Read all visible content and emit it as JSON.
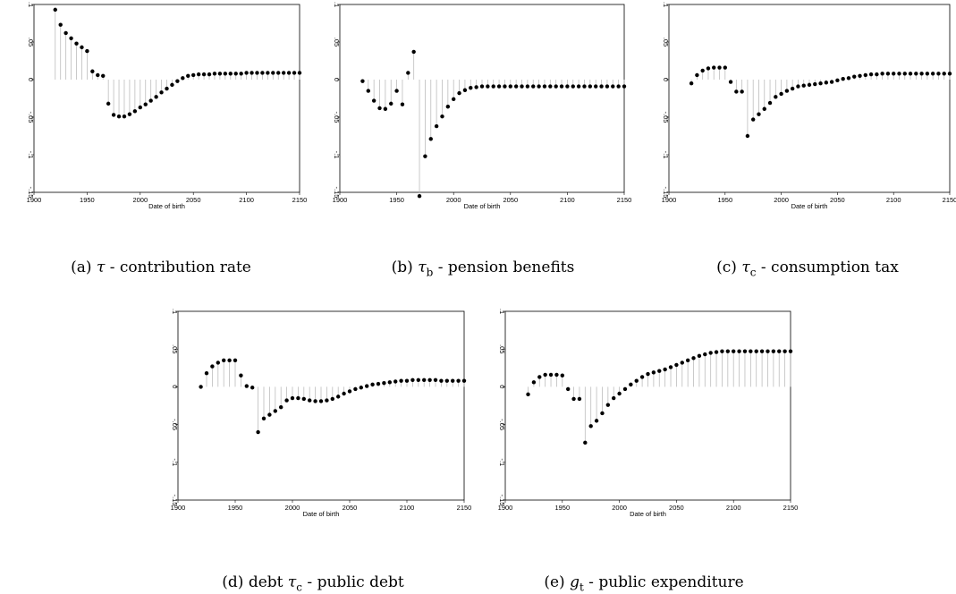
{
  "chart_data": [
    {
      "type": "stem",
      "xlabel": "Date of birth",
      "xticks": [
        1900,
        1950,
        2000,
        2050,
        2100,
        2150
      ],
      "yticks": [
        ".1",
        ".05",
        "0",
        "-.05",
        "-.1",
        "-.15"
      ],
      "ylim": [
        -0.15,
        0.1
      ],
      "xlim": [
        1900,
        2150
      ],
      "caption": {
        "label": "(a)",
        "symbol": "τ",
        "sub": "",
        "text": " - contribution rate"
      },
      "x": [
        1920,
        1925,
        1930,
        1935,
        1940,
        1945,
        1950,
        1955,
        1960,
        1965,
        1970,
        1975,
        1980,
        1985,
        1990,
        1995,
        2000,
        2005,
        2010,
        2015,
        2020,
        2025,
        2030,
        2035,
        2040,
        2045,
        2050,
        2055,
        2060,
        2065,
        2070,
        2075,
        2080,
        2085,
        2090,
        2095,
        2100,
        2105,
        2110,
        2115,
        2120,
        2125,
        2130,
        2135,
        2140,
        2145,
        2150
      ],
      "values": [
        0.093,
        0.073,
        0.062,
        0.055,
        0.048,
        0.043,
        0.038,
        0.011,
        0.006,
        0.005,
        -0.032,
        -0.047,
        -0.049,
        -0.049,
        -0.046,
        -0.042,
        -0.037,
        -0.033,
        -0.028,
        -0.023,
        -0.017,
        -0.012,
        -0.007,
        -0.002,
        0.002,
        0.005,
        0.006,
        0.007,
        0.007,
        0.007,
        0.008,
        0.008,
        0.008,
        0.008,
        0.008,
        0.008,
        0.009,
        0.009,
        0.009,
        0.009,
        0.009,
        0.009,
        0.009,
        0.009,
        0.009,
        0.009,
        0.009
      ]
    },
    {
      "type": "stem",
      "xlabel": "Date of birth",
      "xticks": [
        1900,
        1950,
        2000,
        2050,
        2100,
        2150
      ],
      "yticks": [
        ".1",
        ".05",
        "0",
        "-.05",
        "-.1",
        "-.15"
      ],
      "ylim": [
        -0.15,
        0.1
      ],
      "xlim": [
        1900,
        2150
      ],
      "caption": {
        "label": "(b)",
        "symbol": "τ",
        "sub": "b",
        "text": " - pension benefits"
      },
      "x": [
        1920,
        1925,
        1930,
        1935,
        1940,
        1945,
        1950,
        1955,
        1960,
        1965,
        1970,
        1975,
        1980,
        1985,
        1990,
        1995,
        2000,
        2005,
        2010,
        2015,
        2020,
        2025,
        2030,
        2035,
        2040,
        2045,
        2050,
        2055,
        2060,
        2065,
        2070,
        2075,
        2080,
        2085,
        2090,
        2095,
        2100,
        2105,
        2110,
        2115,
        2120,
        2125,
        2130,
        2135,
        2140,
        2145,
        2150
      ],
      "values": [
        -0.002,
        -0.015,
        -0.028,
        -0.038,
        -0.039,
        -0.032,
        -0.015,
        -0.033,
        0.009,
        0.037,
        -0.155,
        -0.102,
        -0.079,
        -0.062,
        -0.049,
        -0.036,
        -0.026,
        -0.018,
        -0.014,
        -0.011,
        -0.01,
        -0.009,
        -0.009,
        -0.009,
        -0.009,
        -0.009,
        -0.009,
        -0.009,
        -0.009,
        -0.009,
        -0.009,
        -0.009,
        -0.009,
        -0.009,
        -0.009,
        -0.009,
        -0.009,
        -0.009,
        -0.009,
        -0.009,
        -0.009,
        -0.009,
        -0.009,
        -0.009,
        -0.009,
        -0.009,
        -0.009
      ]
    },
    {
      "type": "stem",
      "xlabel": "Date of birth",
      "xticks": [
        1900,
        1950,
        2000,
        2050,
        2100,
        2150
      ],
      "yticks": [
        ".1",
        ".05",
        "0",
        "-.05",
        "-.1",
        "-.15"
      ],
      "ylim": [
        -0.15,
        0.1
      ],
      "xlim": [
        1900,
        2150
      ],
      "caption": {
        "label": "(c)",
        "symbol": "τ",
        "sub": "c",
        "text": " - consumption tax"
      },
      "x": [
        1920,
        1925,
        1930,
        1935,
        1940,
        1945,
        1950,
        1955,
        1960,
        1965,
        1970,
        1975,
        1980,
        1985,
        1990,
        1995,
        2000,
        2005,
        2010,
        2015,
        2020,
        2025,
        2030,
        2035,
        2040,
        2045,
        2050,
        2055,
        2060,
        2065,
        2070,
        2075,
        2080,
        2085,
        2090,
        2095,
        2100,
        2105,
        2110,
        2115,
        2120,
        2125,
        2130,
        2135,
        2140,
        2145,
        2150
      ],
      "values": [
        -0.005,
        0.006,
        0.012,
        0.015,
        0.016,
        0.016,
        0.016,
        -0.003,
        -0.016,
        -0.016,
        -0.075,
        -0.053,
        -0.046,
        -0.039,
        -0.031,
        -0.023,
        -0.019,
        -0.015,
        -0.012,
        -0.009,
        -0.008,
        -0.007,
        -0.006,
        -0.005,
        -0.004,
        -0.003,
        -0.001,
        0.001,
        0.002,
        0.004,
        0.005,
        0.006,
        0.007,
        0.007,
        0.008,
        0.008,
        0.008,
        0.008,
        0.008,
        0.008,
        0.008,
        0.008,
        0.008,
        0.008,
        0.008,
        0.008,
        0.008
      ]
    },
    {
      "type": "stem",
      "xlabel": "Date of birth",
      "xticks": [
        1900,
        1950,
        2000,
        2050,
        2100,
        2150
      ],
      "yticks": [
        ".1",
        ".05",
        "0",
        "-.05",
        "-.1",
        "-.15"
      ],
      "ylim": [
        -0.15,
        0.1
      ],
      "xlim": [
        1900,
        2150
      ],
      "caption": {
        "label": "(d)",
        "symbol": "τ",
        "sub": "c",
        "text": " - public debt",
        "prefix": "debt "
      },
      "x": [
        1920,
        1925,
        1930,
        1935,
        1940,
        1945,
        1950,
        1955,
        1960,
        1965,
        1970,
        1975,
        1980,
        1985,
        1990,
        1995,
        2000,
        2005,
        2010,
        2015,
        2020,
        2025,
        2030,
        2035,
        2040,
        2045,
        2050,
        2055,
        2060,
        2065,
        2070,
        2075,
        2080,
        2085,
        2090,
        2095,
        2100,
        2105,
        2110,
        2115,
        2120,
        2125,
        2130,
        2135,
        2140,
        2145,
        2150
      ],
      "values": [
        0.0,
        0.018,
        0.027,
        0.032,
        0.035,
        0.035,
        0.035,
        0.015,
        0.001,
        -0.001,
        -0.06,
        -0.042,
        -0.037,
        -0.032,
        -0.027,
        -0.018,
        -0.015,
        -0.015,
        -0.016,
        -0.018,
        -0.019,
        -0.019,
        -0.018,
        -0.016,
        -0.013,
        -0.009,
        -0.006,
        -0.003,
        -0.001,
        0.001,
        0.003,
        0.004,
        0.005,
        0.006,
        0.007,
        0.008,
        0.008,
        0.009,
        0.009,
        0.009,
        0.009,
        0.009,
        0.008,
        0.008,
        0.008,
        0.008,
        0.008
      ]
    },
    {
      "type": "stem",
      "xlabel": "Date of birth",
      "xticks": [
        1900,
        1950,
        2000,
        2050,
        2100,
        2150
      ],
      "yticks": [
        ".1",
        ".05",
        "0",
        "-.05",
        "-.1",
        "-.15"
      ],
      "ylim": [
        -0.15,
        0.1
      ],
      "xlim": [
        1900,
        2150
      ],
      "caption": {
        "label": "(e)",
        "symbol": "g",
        "sub": "t",
        "text": " - public expenditure"
      },
      "x": [
        1920,
        1925,
        1930,
        1935,
        1940,
        1945,
        1950,
        1955,
        1960,
        1965,
        1970,
        1975,
        1980,
        1985,
        1990,
        1995,
        2000,
        2005,
        2010,
        2015,
        2020,
        2025,
        2030,
        2035,
        2040,
        2045,
        2050,
        2055,
        2060,
        2065,
        2070,
        2075,
        2080,
        2085,
        2090,
        2095,
        2100,
        2105,
        2110,
        2115,
        2120,
        2125,
        2130,
        2135,
        2140,
        2145,
        2150
      ],
      "values": [
        -0.01,
        0.006,
        0.013,
        0.016,
        0.016,
        0.016,
        0.015,
        -0.003,
        -0.016,
        -0.016,
        -0.074,
        -0.052,
        -0.045,
        -0.035,
        -0.024,
        -0.015,
        -0.009,
        -0.003,
        0.003,
        0.008,
        0.013,
        0.017,
        0.019,
        0.021,
        0.023,
        0.026,
        0.029,
        0.032,
        0.035,
        0.038,
        0.041,
        0.043,
        0.045,
        0.046,
        0.047,
        0.047,
        0.047,
        0.047,
        0.047,
        0.047,
        0.047,
        0.047,
        0.047,
        0.047,
        0.047,
        0.047,
        0.047
      ]
    }
  ]
}
